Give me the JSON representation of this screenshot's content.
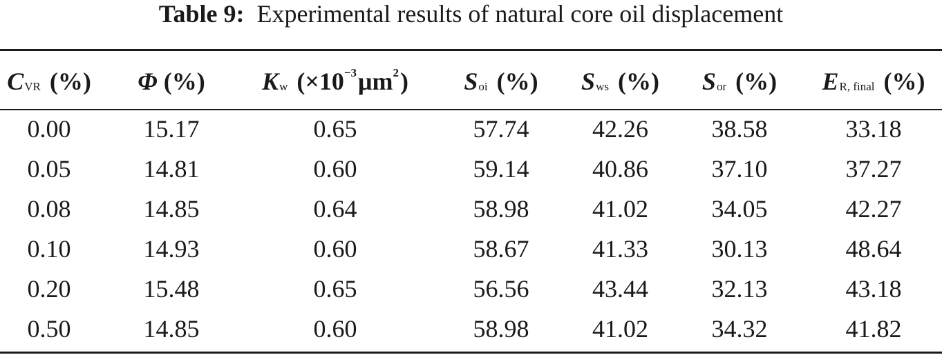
{
  "caption": {
    "label": "Table 9:",
    "text": "Experimental results of natural core oil displacement"
  },
  "headers": {
    "c1": {
      "symbol": "C",
      "subscript": "VR",
      "unit": "(%)"
    },
    "c2": {
      "symbol": "Φ",
      "unit": "(%)"
    },
    "c3": {
      "symbol": "K",
      "subscript": "w",
      "unit_pre": "(×10",
      "exponent": "−3",
      "unit_mid": "μm",
      "unit_exp": "2",
      "unit_post": ")"
    },
    "c4": {
      "symbol": "S",
      "subscript": "oi",
      "unit": "(%)"
    },
    "c5": {
      "symbol": "S",
      "subscript": "ws",
      "unit": "(%)"
    },
    "c6": {
      "symbol": "S",
      "subscript": "or",
      "unit": "(%)"
    },
    "c7": {
      "symbol": "E",
      "subscript": "R, final",
      "unit": "(%)"
    }
  },
  "rows": [
    [
      "0.00",
      "15.17",
      "0.65",
      "57.74",
      "42.26",
      "38.58",
      "33.18"
    ],
    [
      "0.05",
      "14.81",
      "0.60",
      "59.14",
      "40.86",
      "37.10",
      "37.27"
    ],
    [
      "0.08",
      "14.85",
      "0.64",
      "58.98",
      "41.02",
      "34.05",
      "42.27"
    ],
    [
      "0.10",
      "14.93",
      "0.60",
      "58.67",
      "41.33",
      "30.13",
      "48.64"
    ],
    [
      "0.20",
      "15.48",
      "0.65",
      "56.56",
      "43.44",
      "32.13",
      "43.18"
    ],
    [
      "0.50",
      "14.85",
      "0.60",
      "58.98",
      "41.02",
      "34.32",
      "41.82"
    ]
  ]
}
